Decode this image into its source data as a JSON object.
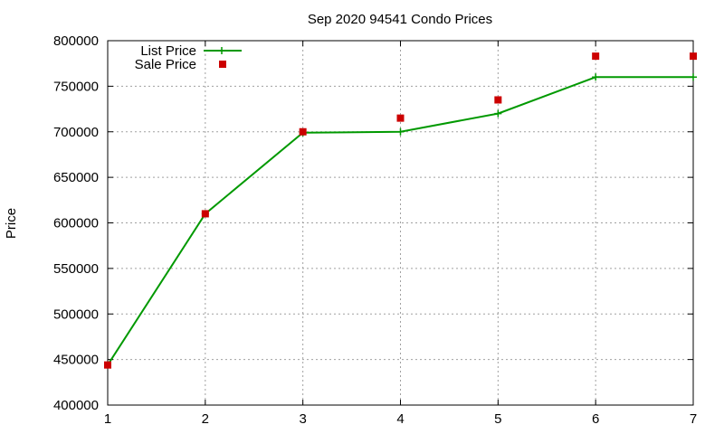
{
  "chart_data": {
    "type": "line",
    "title": "Sep 2020 94541 Condo Prices",
    "xlabel": "",
    "ylabel": "Price",
    "xlim": [
      1,
      7
    ],
    "ylim": [
      400000,
      800000
    ],
    "x_ticks": [
      1,
      2,
      3,
      4,
      5,
      6,
      7
    ],
    "y_ticks": [
      400000,
      450000,
      500000,
      550000,
      600000,
      650000,
      700000,
      750000,
      800000
    ],
    "grid": true,
    "legend_position": "top-left",
    "series": [
      {
        "name": "List Price",
        "style": "line-with-cross-markers",
        "color": "#009900",
        "x": [
          1,
          2,
          3,
          4,
          5,
          6,
          7
        ],
        "y": [
          444000,
          610000,
          699000,
          700000,
          720000,
          760000,
          760000
        ]
      },
      {
        "name": "Sale Price",
        "style": "square-markers",
        "color": "#cc0000",
        "x": [
          1,
          2,
          3,
          4,
          5,
          6,
          7
        ],
        "y": [
          444000,
          610000,
          700000,
          715000,
          735000,
          783000,
          783000
        ]
      }
    ]
  }
}
